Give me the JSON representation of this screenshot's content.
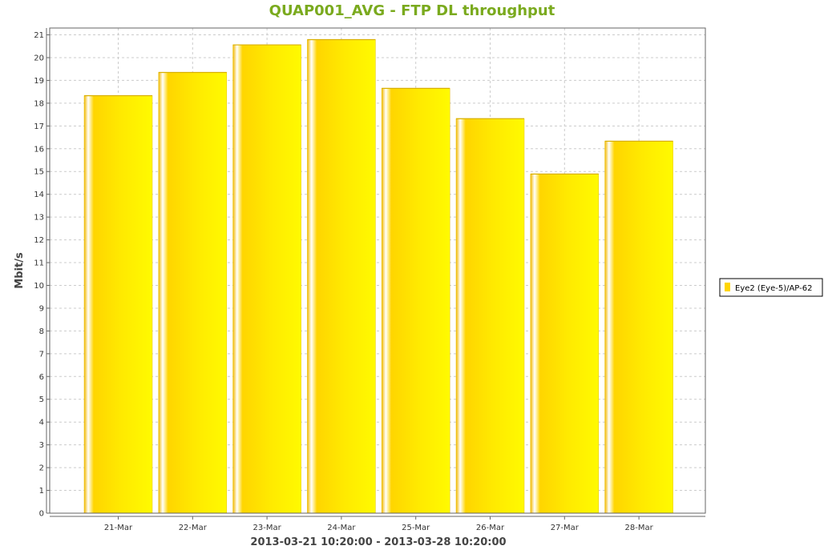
{
  "chart_data": {
    "type": "bar",
    "title": "QUAP001_AVG - FTP DL throughput",
    "xlabel": "2013-03-21 10:20:00 - 2013-03-28 10:20:00",
    "ylabel": "Mbit/s",
    "categories": [
      "21-Mar",
      "22-Mar",
      "23-Mar",
      "24-Mar",
      "25-Mar",
      "26-Mar",
      "27-Mar",
      "28-Mar"
    ],
    "series": [
      {
        "name": "Eye2 (Eye-5)/AP-62",
        "values": [
          18.33,
          19.35,
          20.56,
          20.79,
          18.65,
          17.32,
          14.89,
          16.33
        ],
        "color": "#ffd500"
      }
    ],
    "ylim": [
      0,
      21.3
    ],
    "yticks": [
      0,
      1,
      2,
      3,
      4,
      5,
      6,
      7,
      8,
      9,
      10,
      11,
      12,
      13,
      14,
      15,
      16,
      17,
      18,
      19,
      20,
      21
    ],
    "grid": true,
    "legend_position": "right"
  }
}
